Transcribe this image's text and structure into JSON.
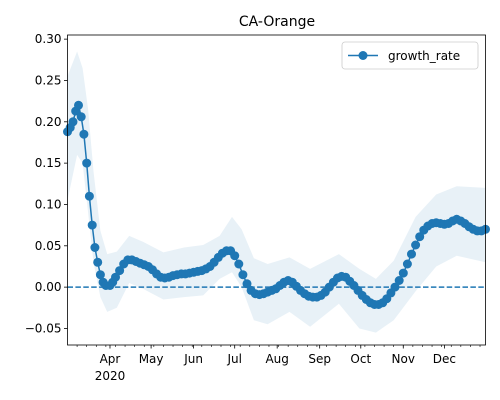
{
  "chart_data": {
    "type": "line",
    "title": "CA-Orange",
    "xlabel": "",
    "ylabel": "",
    "x_start": "2020-03-01",
    "x_end": "2020-12-31",
    "ylim": [
      -0.07,
      0.305
    ],
    "y_ticks": [
      -0.05,
      0.0,
      0.05,
      0.1,
      0.15,
      0.2,
      0.25,
      0.3
    ],
    "y_tick_labels": [
      "−0.05",
      "0.00",
      "0.05",
      "0.10",
      "0.15",
      "0.20",
      "0.25",
      "0.30"
    ],
    "x_month_ticks": [
      "2020-04-01",
      "2020-05-01",
      "2020-06-01",
      "2020-07-01",
      "2020-08-01",
      "2020-09-01",
      "2020-10-01",
      "2020-11-01",
      "2020-12-01"
    ],
    "x_month_labels": [
      "Apr",
      "May",
      "Jun",
      "Jul",
      "Aug",
      "Sep",
      "Oct",
      "Nov",
      "Dec"
    ],
    "x_year_label": "2020",
    "reference_line": {
      "y": 0.0,
      "style": "dashed",
      "color": "#1f77b4"
    },
    "legend": {
      "position": "top-right",
      "entries": [
        "growth_rate"
      ]
    },
    "grid": false,
    "series": [
      {
        "name": "growth_rate",
        "color": "#1f77b4",
        "marker": "circle",
        "points": [
          [
            "2020-03-01",
            0.188
          ],
          [
            "2020-03-03",
            0.193
          ],
          [
            "2020-03-05",
            0.2
          ],
          [
            "2020-03-07",
            0.213
          ],
          [
            "2020-03-09",
            0.22
          ],
          [
            "2020-03-11",
            0.206
          ],
          [
            "2020-03-13",
            0.185
          ],
          [
            "2020-03-15",
            0.15
          ],
          [
            "2020-03-17",
            0.11
          ],
          [
            "2020-03-19",
            0.075
          ],
          [
            "2020-03-21",
            0.048
          ],
          [
            "2020-03-23",
            0.03
          ],
          [
            "2020-03-25",
            0.015
          ],
          [
            "2020-03-27",
            0.006
          ],
          [
            "2020-03-29",
            0.002
          ],
          [
            "2020-04-01",
            0.002
          ],
          [
            "2020-04-03",
            0.006
          ],
          [
            "2020-04-05",
            0.012
          ],
          [
            "2020-04-08",
            0.02
          ],
          [
            "2020-04-11",
            0.028
          ],
          [
            "2020-04-14",
            0.033
          ],
          [
            "2020-04-17",
            0.033
          ],
          [
            "2020-04-20",
            0.031
          ],
          [
            "2020-04-23",
            0.029
          ],
          [
            "2020-04-26",
            0.027
          ],
          [
            "2020-04-29",
            0.025
          ],
          [
            "2020-05-02",
            0.021
          ],
          [
            "2020-05-05",
            0.016
          ],
          [
            "2020-05-08",
            0.012
          ],
          [
            "2020-05-11",
            0.011
          ],
          [
            "2020-05-14",
            0.012
          ],
          [
            "2020-05-17",
            0.014
          ],
          [
            "2020-05-20",
            0.015
          ],
          [
            "2020-05-23",
            0.016
          ],
          [
            "2020-05-26",
            0.016
          ],
          [
            "2020-05-29",
            0.017
          ],
          [
            "2020-06-01",
            0.018
          ],
          [
            "2020-06-04",
            0.019
          ],
          [
            "2020-06-07",
            0.02
          ],
          [
            "2020-06-10",
            0.022
          ],
          [
            "2020-06-13",
            0.025
          ],
          [
            "2020-06-16",
            0.03
          ],
          [
            "2020-06-19",
            0.036
          ],
          [
            "2020-06-22",
            0.041
          ],
          [
            "2020-06-25",
            0.044
          ],
          [
            "2020-06-28",
            0.044
          ],
          [
            "2020-07-01",
            0.038
          ],
          [
            "2020-07-04",
            0.028
          ],
          [
            "2020-07-07",
            0.015
          ],
          [
            "2020-07-10",
            0.004
          ],
          [
            "2020-07-13",
            -0.004
          ],
          [
            "2020-07-16",
            -0.008
          ],
          [
            "2020-07-19",
            -0.009
          ],
          [
            "2020-07-22",
            -0.008
          ],
          [
            "2020-07-25",
            -0.006
          ],
          [
            "2020-07-28",
            -0.004
          ],
          [
            "2020-07-31",
            -0.002
          ],
          [
            "2020-08-03",
            0.002
          ],
          [
            "2020-08-06",
            0.006
          ],
          [
            "2020-08-09",
            0.008
          ],
          [
            "2020-08-12",
            0.006
          ],
          [
            "2020-08-15",
            0.001
          ],
          [
            "2020-08-18",
            -0.004
          ],
          [
            "2020-08-21",
            -0.008
          ],
          [
            "2020-08-24",
            -0.011
          ],
          [
            "2020-08-27",
            -0.012
          ],
          [
            "2020-08-30",
            -0.012
          ],
          [
            "2020-09-02",
            -0.01
          ],
          [
            "2020-09-05",
            -0.006
          ],
          [
            "2020-09-08",
            0.0
          ],
          [
            "2020-09-11",
            0.006
          ],
          [
            "2020-09-14",
            0.011
          ],
          [
            "2020-09-17",
            0.013
          ],
          [
            "2020-09-20",
            0.012
          ],
          [
            "2020-09-23",
            0.007
          ],
          [
            "2020-09-26",
            0.002
          ],
          [
            "2020-09-29",
            -0.004
          ],
          [
            "2020-10-02",
            -0.01
          ],
          [
            "2020-10-05",
            -0.015
          ],
          [
            "2020-10-08",
            -0.019
          ],
          [
            "2020-10-11",
            -0.021
          ],
          [
            "2020-10-14",
            -0.021
          ],
          [
            "2020-10-17",
            -0.019
          ],
          [
            "2020-10-20",
            -0.014
          ],
          [
            "2020-10-23",
            -0.007
          ],
          [
            "2020-10-26",
            0.0
          ],
          [
            "2020-10-29",
            0.008
          ],
          [
            "2020-11-01",
            0.017
          ],
          [
            "2020-11-04",
            0.028
          ],
          [
            "2020-11-07",
            0.04
          ],
          [
            "2020-11-10",
            0.051
          ],
          [
            "2020-11-13",
            0.061
          ],
          [
            "2020-11-16",
            0.069
          ],
          [
            "2020-11-19",
            0.074
          ],
          [
            "2020-11-22",
            0.077
          ],
          [
            "2020-11-25",
            0.078
          ],
          [
            "2020-11-28",
            0.077
          ],
          [
            "2020-12-01",
            0.076
          ],
          [
            "2020-12-04",
            0.077
          ],
          [
            "2020-12-07",
            0.08
          ],
          [
            "2020-12-10",
            0.082
          ],
          [
            "2020-12-13",
            0.08
          ],
          [
            "2020-12-16",
            0.077
          ],
          [
            "2020-12-19",
            0.073
          ],
          [
            "2020-12-22",
            0.07
          ],
          [
            "2020-12-25",
            0.068
          ],
          [
            "2020-12-28",
            0.068
          ],
          [
            "2020-12-31",
            0.07
          ]
        ],
        "band_upper": [
          [
            "2020-03-01",
            0.255
          ],
          [
            "2020-03-08",
            0.285
          ],
          [
            "2020-03-12",
            0.265
          ],
          [
            "2020-03-16",
            0.215
          ],
          [
            "2020-03-20",
            0.14
          ],
          [
            "2020-03-25",
            0.068
          ],
          [
            "2020-03-30",
            0.04
          ],
          [
            "2020-04-06",
            0.043
          ],
          [
            "2020-04-15",
            0.062
          ],
          [
            "2020-04-25",
            0.055
          ],
          [
            "2020-05-10",
            0.042
          ],
          [
            "2020-05-25",
            0.048
          ],
          [
            "2020-06-08",
            0.051
          ],
          [
            "2020-06-20",
            0.062
          ],
          [
            "2020-06-29",
            0.085
          ],
          [
            "2020-07-06",
            0.07
          ],
          [
            "2020-07-15",
            0.035
          ],
          [
            "2020-07-25",
            0.028
          ],
          [
            "2020-08-10",
            0.036
          ],
          [
            "2020-08-25",
            0.022
          ],
          [
            "2020-09-15",
            0.04
          ],
          [
            "2020-09-30",
            0.022
          ],
          [
            "2020-10-12",
            0.01
          ],
          [
            "2020-10-25",
            0.032
          ],
          [
            "2020-11-10",
            0.085
          ],
          [
            "2020-11-25",
            0.112
          ],
          [
            "2020-12-10",
            0.122
          ],
          [
            "2020-12-31",
            0.12
          ]
        ],
        "band_lower": [
          [
            "2020-03-01",
            0.105
          ],
          [
            "2020-03-08",
            0.16
          ],
          [
            "2020-03-12",
            0.15
          ],
          [
            "2020-03-16",
            0.09
          ],
          [
            "2020-03-20",
            0.03
          ],
          [
            "2020-03-25",
            -0.012
          ],
          [
            "2020-03-30",
            -0.03
          ],
          [
            "2020-04-06",
            -0.025
          ],
          [
            "2020-04-15",
            0.005
          ],
          [
            "2020-04-25",
            -0.002
          ],
          [
            "2020-05-10",
            -0.015
          ],
          [
            "2020-05-25",
            -0.012
          ],
          [
            "2020-06-08",
            -0.01
          ],
          [
            "2020-06-20",
            0.01
          ],
          [
            "2020-06-29",
            0.018
          ],
          [
            "2020-07-06",
            0.0
          ],
          [
            "2020-07-15",
            -0.04
          ],
          [
            "2020-07-25",
            -0.045
          ],
          [
            "2020-08-10",
            -0.03
          ],
          [
            "2020-08-25",
            -0.048
          ],
          [
            "2020-09-15",
            -0.02
          ],
          [
            "2020-09-30",
            -0.05
          ],
          [
            "2020-10-12",
            -0.055
          ],
          [
            "2020-10-25",
            -0.04
          ],
          [
            "2020-11-10",
            -0.005
          ],
          [
            "2020-11-25",
            0.025
          ],
          [
            "2020-12-10",
            0.038
          ],
          [
            "2020-12-31",
            0.03
          ]
        ]
      }
    ]
  }
}
